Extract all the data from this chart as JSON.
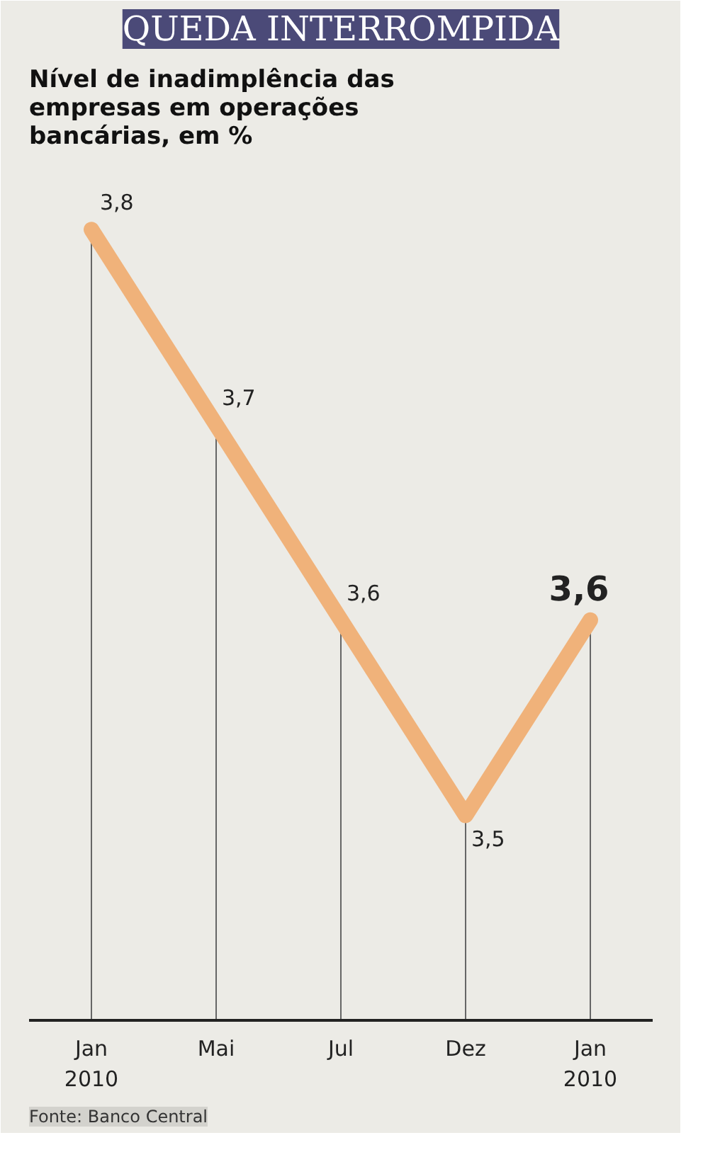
{
  "chart_data": {
    "type": "line",
    "title": "QUEDA INTERROMPIDA",
    "subtitle": "Nível de inadimplência das\nempresas em operações\nbancárias, em %",
    "categories": [
      "Jan\n2010",
      "Mai",
      "Jul",
      "Dez",
      "Jan\n2010"
    ],
    "series": [
      {
        "color": "#f0b27a",
        "values": [
          3.8,
          3.7,
          3.6,
          3.5,
          3.6
        ],
        "value_labels": [
          "3,8",
          "3,7",
          "3,6",
          "3,5",
          "3,6"
        ]
      }
    ],
    "annotations": [
      "Fonte: Banco Central"
    ],
    "grid": "x",
    "line_style": "solid"
  }
}
